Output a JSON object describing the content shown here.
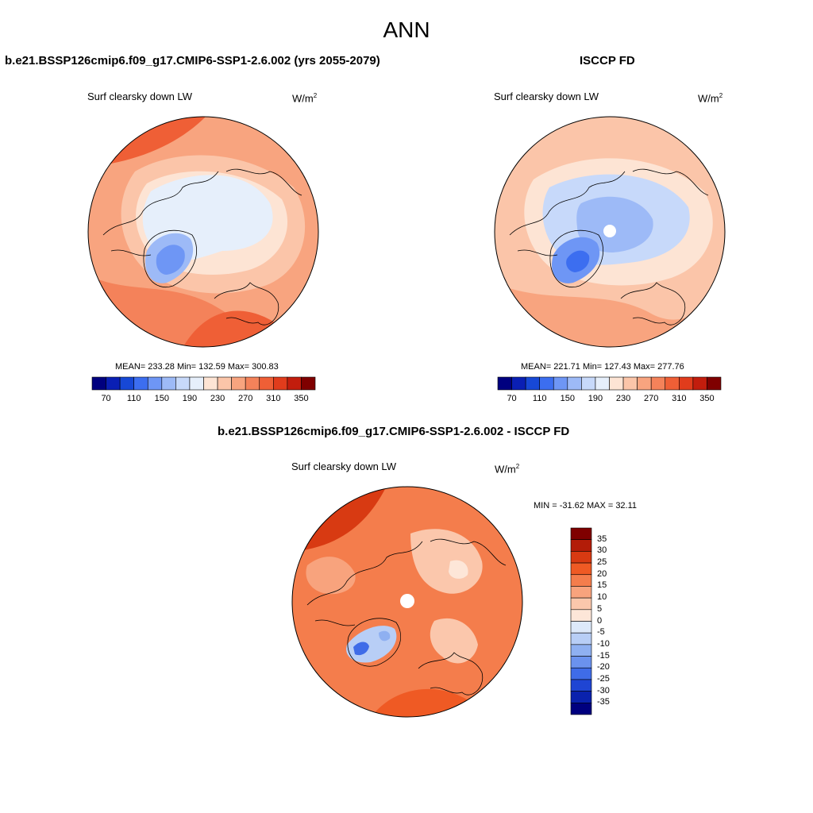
{
  "figure_title": "ANN",
  "left_panel": {
    "title": "b.e21.BSSP126cmip6.f09_g17.CMIP6-SSP1-2.6.002 (yrs 2055-2079)",
    "variable": "Surf clearsky down LW",
    "units": "W/m",
    "units_exp": "2",
    "stats": "MEAN= 233.28  Min= 132.59  Max= 300.83",
    "colorbar_ticks": [
      "70",
      "110",
      "150",
      "190",
      "230",
      "270",
      "310",
      "350"
    ]
  },
  "right_panel": {
    "title": "ISCCP FD",
    "variable": "Surf clearsky down LW",
    "units": "W/m",
    "units_exp": "2",
    "stats": "MEAN= 221.71  Min= 127.43  Max= 277.76",
    "colorbar_ticks": [
      "70",
      "110",
      "150",
      "190",
      "230",
      "270",
      "310",
      "350"
    ]
  },
  "diff_panel": {
    "title": "b.e21.BSSP126cmip6.f09_g17.CMIP6-SSP1-2.6.002 - ISCCP FD",
    "variable": "Surf clearsky down LW",
    "units": "W/m",
    "units_exp": "2",
    "stats": "MIN = -31.62 MAX =  32.11",
    "colorbar_ticks": [
      "35",
      "30",
      "25",
      "20",
      "15",
      "10",
      "5",
      "0",
      "-5",
      "-10",
      "-15",
      "-20",
      "-25",
      "-30",
      "-35"
    ]
  },
  "colors": {
    "abs_scale": [
      "#00007f",
      "#0a1fb4",
      "#1748d6",
      "#3c6ef0",
      "#6e96f5",
      "#9dbaf7",
      "#c7d9fa",
      "#e6effb",
      "#fde4d4",
      "#fbc5a9",
      "#f8a47f",
      "#f4825a",
      "#ef5f36",
      "#e13c1c",
      "#c21d0d",
      "#7f0000"
    ],
    "diff_scale": [
      "#7f0000",
      "#b31c08",
      "#d83a12",
      "#ef5a24",
      "#f47d4c",
      "#f8a37d",
      "#fbc7ac",
      "#fde6d8",
      "#dde9fa",
      "#b8cef6",
      "#8fb0f1",
      "#6b92ee",
      "#3f6ce8",
      "#1f45d3",
      "#0a22ad",
      "#00007f"
    ]
  }
}
